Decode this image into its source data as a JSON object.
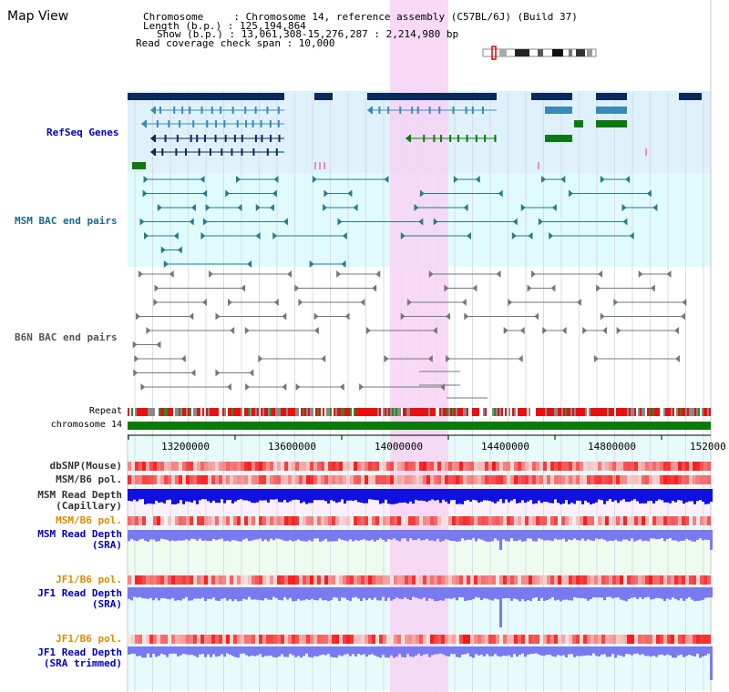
{
  "title": "Map View",
  "info": {
    "line1": "Chromosome     : Chromosome 14, reference assembly (C57BL/6J) (Build 37)",
    "line2": "Length (b.p.) : 125,194,864",
    "line3": "Show (b.p.) : 13,061,308-15,276,287 : 2,214,980 bp",
    "line4": "Read coverage check span : 10,000"
  },
  "tracks": {
    "refseq": "RefSeq Genes",
    "msm_bac": "MSM BAC end pairs",
    "b6n_bac": "B6N BAC end pairs",
    "repeat": "Repeat",
    "chromosome": "chromosome 14",
    "dbsnp": "dbSNP(Mouse)",
    "msm_pol": "MSM/B6 pol.",
    "msm_depth_cap_1": "MSM Read Depth",
    "msm_depth_cap_2": "(Capillary)",
    "msm_pol2": "MSM/B6 pol.",
    "msm_depth_sra_1": "MSM Read Depth",
    "msm_depth_sra_2": "(SRA)",
    "jf1_pol": "JF1/B6 pol.",
    "jf1_depth_sra_1": "JF1 Read Depth",
    "jf1_depth_sra_2": "(SRA)",
    "jf1_pol2": "JF1/B6 pol.",
    "jf1_depth_trim_1": "JF1 Read Depth",
    "jf1_depth_trim_2": "(SRA trimmed)"
  },
  "axis": {
    "ticks": [
      "13200000",
      "13600000",
      "14000000",
      "14400000",
      "14800000",
      "152000"
    ]
  },
  "colors": {
    "refseq_bg": "#dff1fb",
    "msm_bac_bg": "#e0fbfb",
    "highlight": "#f7d4f4",
    "gene_dark": "#0a2a5a",
    "gene_mid": "#3a8ab8",
    "gene_green": "#0a7a10",
    "bac_teal": "#2a7a8a",
    "bac_gray": "#777777",
    "depth_blue": "#1010e0",
    "depth_light": "#7a7af0",
    "label_blue": "#0000c0",
    "label_orange": "#e08a00",
    "label_teal": "#1a6a8a"
  }
}
